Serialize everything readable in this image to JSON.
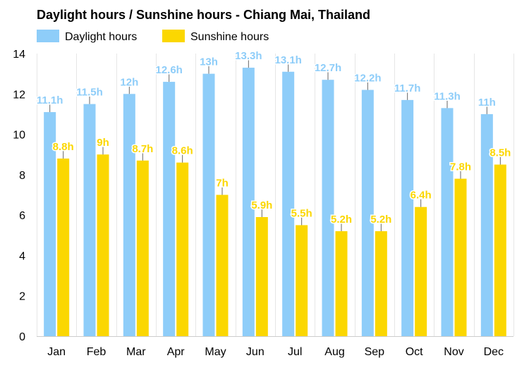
{
  "chart_data": {
    "type": "bar",
    "title": "Daylight hours / Sunshine hours - Chiang Mai, Thailand",
    "categories": [
      "Jan",
      "Feb",
      "Mar",
      "Apr",
      "May",
      "Jun",
      "Jul",
      "Aug",
      "Sep",
      "Oct",
      "Nov",
      "Dec"
    ],
    "series": [
      {
        "name": "Daylight hours",
        "color": "#8ecdf9",
        "values": [
          11.1,
          11.5,
          12,
          12.6,
          13,
          13.3,
          13.1,
          12.7,
          12.2,
          11.7,
          11.3,
          11
        ],
        "labels": [
          "11.1h",
          "11.5h",
          "12h",
          "12.6h",
          "13h",
          "13.3h",
          "13.1h",
          "12.7h",
          "12.2h",
          "11.7h",
          "11.3h",
          "11h"
        ]
      },
      {
        "name": "Sunshine hours",
        "color": "#fbd701",
        "values": [
          8.8,
          9,
          8.7,
          8.6,
          7,
          5.9,
          5.5,
          5.2,
          5.2,
          6.4,
          7.8,
          8.5
        ],
        "labels": [
          "8.8h",
          "9h",
          "8.7h",
          "8.6h",
          "7h",
          "5.9h",
          "5.5h",
          "5.2h",
          "5.2h",
          "6.4h",
          "7.8h",
          "8.5h"
        ]
      }
    ],
    "ylim": [
      0,
      14
    ],
    "yticks": [
      0,
      2,
      4,
      6,
      8,
      10,
      12,
      14
    ],
    "grid": "vertical",
    "legend": "top-left"
  }
}
